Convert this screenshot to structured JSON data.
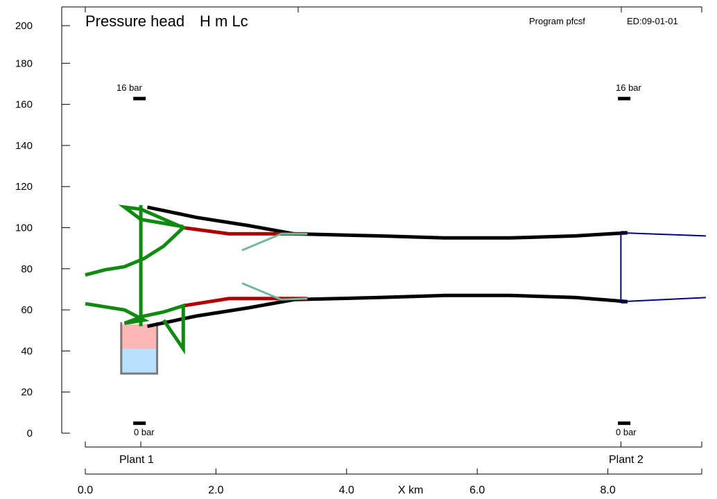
{
  "title": "Pressure head",
  "title_vars": "H   m Lc",
  "program": "Program pfcsf",
  "edition": "ED:09-01-01",
  "gauge_top_left": "16 bar",
  "gauge_top_right": "16 bar",
  "gauge_bottom_left": "0 bar",
  "gauge_bottom_right": "0 bar",
  "plant1": "Plant 1",
  "plant2": "Plant 2",
  "x_axis_label": "X km",
  "colors": {
    "black": "#000000",
    "red": "#b00000",
    "green": "#108a10",
    "teal": "#6fb8a0",
    "navy": "#00008b",
    "tank_pink": "#ffb6b6",
    "tank_blue": "#b8e0ff",
    "tank_border": "#7a7a7a"
  },
  "chart_data": {
    "type": "line",
    "title": "Pressure head   H   m Lc",
    "xlabel": "X km",
    "ylabel": "",
    "xlim": [
      0,
      9.5
    ],
    "ylim": [
      0,
      200
    ],
    "y_ticks": [
      "0",
      "20",
      "40",
      "60",
      "80",
      "100",
      "120",
      "140",
      "160",
      "180",
      "200"
    ],
    "x_ticks": [
      "0.0",
      "2.0",
      "4.0",
      "6.0",
      "8.0"
    ],
    "series": [
      {
        "name": "",
        "color": "black",
        "width": 5,
        "values": [
          [
            0.95,
            110
          ],
          [
            1.7,
            105
          ],
          [
            2.5,
            101
          ],
          [
            3.2,
            97
          ],
          [
            4.5,
            96
          ],
          [
            5.5,
            95
          ],
          [
            6.5,
            95
          ],
          [
            7.5,
            96
          ],
          [
            8.3,
            97.5
          ],
          [
            8.2,
            97.5
          ]
        ]
      },
      {
        "name": "",
        "color": "black",
        "width": 5,
        "values": [
          [
            0.95,
            52
          ],
          [
            1.7,
            57
          ],
          [
            2.5,
            61
          ],
          [
            3.2,
            65
          ],
          [
            4.5,
            66
          ],
          [
            5.5,
            67
          ],
          [
            6.5,
            67
          ],
          [
            7.5,
            66
          ],
          [
            8.3,
            64
          ],
          [
            8.2,
            64
          ]
        ]
      },
      {
        "name": "",
        "color": "red",
        "width": 5,
        "values": [
          [
            1.5,
            100
          ],
          [
            2.2,
            97
          ],
          [
            3.2,
            97
          ],
          [
            3.4,
            97
          ]
        ]
      },
      {
        "name": "",
        "color": "red",
        "width": 5,
        "values": [
          [
            1.5,
            62
          ],
          [
            2.2,
            65.5
          ],
          [
            3.2,
            65.5
          ],
          [
            3.4,
            65.5
          ]
        ]
      },
      {
        "name": "",
        "color": "teal",
        "width": 3,
        "values": [
          [
            2.4,
            89
          ],
          [
            3.0,
            97
          ],
          [
            3.4,
            97
          ]
        ]
      },
      {
        "name": "",
        "color": "teal",
        "width": 3,
        "values": [
          [
            2.4,
            73
          ],
          [
            3.0,
            65
          ],
          [
            3.4,
            65.5
          ]
        ]
      },
      {
        "name": "",
        "color": "green",
        "width": 5,
        "values": [
          [
            0,
            77
          ],
          [
            0.3,
            79.5
          ],
          [
            0.6,
            81
          ],
          [
            0.9,
            85
          ],
          [
            1.2,
            91
          ],
          [
            1.5,
            100
          ],
          [
            0.85,
            109
          ],
          [
            0.6,
            110
          ],
          [
            0.85,
            104
          ],
          [
            1.5,
            100.5
          ]
        ]
      },
      {
        "name": "",
        "color": "green",
        "width": 5,
        "values": [
          [
            0,
            63
          ],
          [
            0.3,
            61.5
          ],
          [
            0.6,
            60
          ],
          [
            0.9,
            55
          ],
          [
            0.6,
            53.5
          ],
          [
            0.9,
            57
          ],
          [
            1.2,
            59
          ],
          [
            1.5,
            62
          ],
          [
            1.5,
            41
          ],
          [
            1.2,
            55
          ]
        ]
      },
      {
        "name": "",
        "color": "green",
        "width": 5,
        "values": [
          [
            0.85,
            111
          ],
          [
            0.85,
            52
          ]
        ]
      },
      {
        "name": "",
        "color": "navy",
        "width": 2,
        "values": [
          [
            8.2,
            97.5
          ],
          [
            9.5,
            96
          ]
        ]
      },
      {
        "name": "",
        "color": "navy",
        "width": 2,
        "values": [
          [
            8.2,
            64
          ],
          [
            9.5,
            66
          ]
        ]
      },
      {
        "name": "",
        "color": "navy",
        "width": 2,
        "values": [
          [
            8.2,
            97.5
          ],
          [
            8.2,
            64
          ]
        ]
      }
    ],
    "tank": {
      "x_start": 0.55,
      "x_end": 1.1,
      "bottom": 29,
      "top": 54,
      "pink_top": 53,
      "blue_top": 41
    },
    "gauges": [
      {
        "x": 0.83,
        "y": 163
      },
      {
        "x": 0.83,
        "y": 5
      },
      {
        "x": 8.25,
        "y": 163
      },
      {
        "x": 8.25,
        "y": 5
      }
    ],
    "plants": [
      {
        "name": "Plant 1",
        "x": 0.85
      },
      {
        "name": "Plant 2",
        "x": 8.2
      }
    ],
    "grid": false
  }
}
